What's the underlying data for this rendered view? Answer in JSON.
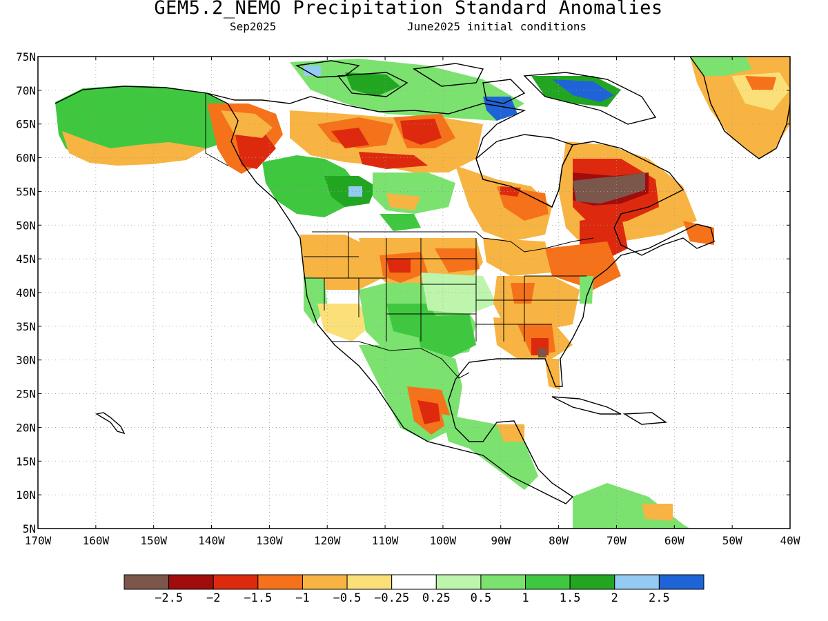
{
  "title": "GEM5.2_NEMO Precipitation Standard Anomalies",
  "subtitle_left": "Sep2025",
  "subtitle_right": "June2025 initial conditions",
  "map": {
    "lon_labels": [
      "170W",
      "160W",
      "150W",
      "140W",
      "130W",
      "120W",
      "110W",
      "100W",
      "90W",
      "80W",
      "70W",
      "60W",
      "50W",
      "40W"
    ],
    "lat_labels": [
      "75N",
      "70N",
      "65N",
      "60N",
      "55N",
      "50N",
      "45N",
      "40N",
      "35N",
      "30N",
      "25N",
      "20N",
      "15N",
      "10N",
      "5N"
    ],
    "lon_range": [
      -170,
      -40
    ],
    "lat_range": [
      5,
      75
    ],
    "gridlines": "dotted"
  },
  "colorbar": {
    "colors": [
      "#7b564a",
      "#a10c0c",
      "#dd2a0e",
      "#f5721a",
      "#f7b442",
      "#fbe07a",
      "#ffffff",
      "#bdf5ad",
      "#7be26f",
      "#3fc83f",
      "#22a622",
      "#93cbf2",
      "#1f64d6"
    ],
    "tick_labels": [
      "−2.5",
      "−2",
      "−1.5",
      "−1",
      "−0.5",
      "−0.25",
      "0.25",
      "0.5",
      "1",
      "1.5",
      "2",
      "2.5"
    ]
  },
  "colors": {
    "land_outline": "#000000",
    "frame": "#000000"
  }
}
